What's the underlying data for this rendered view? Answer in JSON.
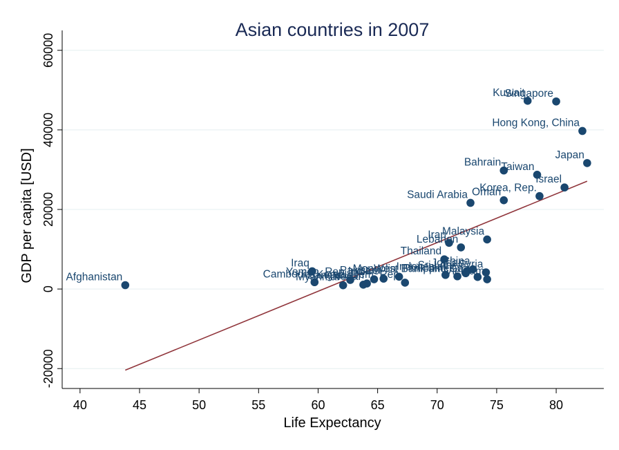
{
  "chart_data": {
    "type": "scatter",
    "title": "Asian countries in 2007",
    "xlabel": "Life Expectancy",
    "ylabel": "GDP per capita [USD]",
    "xlim": [
      38.5,
      84
    ],
    "ylim": [
      -25000,
      65000
    ],
    "xticks": [
      40,
      45,
      50,
      55,
      60,
      65,
      70,
      75,
      80
    ],
    "yticks": [
      -20000,
      0,
      20000,
      40000,
      60000
    ],
    "grid": "horizontal",
    "colors": {
      "marker": "#1a476f",
      "fit_line": "#90353b",
      "label": "#1a476f",
      "title": "#1a2a55"
    },
    "series": [
      {
        "points": [
          {
            "label": "Afghanistan",
            "x": 43.8,
            "y": 974
          },
          {
            "label": "Bahrain",
            "x": 75.6,
            "y": 29796
          },
          {
            "label": "Bangladesh",
            "x": 64.1,
            "y": 1391
          },
          {
            "label": "Cambodia",
            "x": 59.7,
            "y": 1713
          },
          {
            "label": "China",
            "x": 73.0,
            "y": 4959
          },
          {
            "label": "Hong Kong, China",
            "x": 82.2,
            "y": 39725
          },
          {
            "label": "India",
            "x": 64.7,
            "y": 2452
          },
          {
            "label": "Indonesia",
            "x": 70.7,
            "y": 3541
          },
          {
            "label": "Iran",
            "x": 71.0,
            "y": 11606
          },
          {
            "label": "Iraq",
            "x": 59.5,
            "y": 4471
          },
          {
            "label": "Israel",
            "x": 80.7,
            "y": 25523
          },
          {
            "label": "Japan",
            "x": 82.6,
            "y": 31656
          },
          {
            "label": "Jordan",
            "x": 72.5,
            "y": 4519
          },
          {
            "label": "Korea, Dem. Rep.",
            "x": 67.3,
            "y": 1593
          },
          {
            "label": "Korea, Rep.",
            "x": 78.6,
            "y": 23348
          },
          {
            "label": "Kuwait",
            "x": 77.6,
            "y": 47307
          },
          {
            "label": "Lebanon",
            "x": 72.0,
            "y": 10461
          },
          {
            "label": "Malaysia",
            "x": 74.2,
            "y": 12452
          },
          {
            "label": "Mongolia",
            "x": 66.8,
            "y": 3096
          },
          {
            "label": "Myanmar",
            "x": 62.1,
            "y": 944
          },
          {
            "label": "Nepal",
            "x": 63.8,
            "y": 1091
          },
          {
            "label": "Oman",
            "x": 75.6,
            "y": 22316
          },
          {
            "label": "Pakistan",
            "x": 65.5,
            "y": 2606
          },
          {
            "label": "Philippines",
            "x": 71.7,
            "y": 3190
          },
          {
            "label": "Saudi Arabia",
            "x": 72.8,
            "y": 21655
          },
          {
            "label": "Singapore",
            "x": 80.0,
            "y": 47143
          },
          {
            "label": "Sri Lanka",
            "x": 72.4,
            "y": 3970
          },
          {
            "label": "Syria",
            "x": 74.1,
            "y": 4185
          },
          {
            "label": "Taiwan",
            "x": 78.4,
            "y": 28718
          },
          {
            "label": "Thailand",
            "x": 70.6,
            "y": 7458
          },
          {
            "label": "Vietnam",
            "x": 74.2,
            "y": 2442
          },
          {
            "label": "West Bank and Gaza",
            "x": 73.4,
            "y": 3026
          },
          {
            "label": "Yemen, Rep.",
            "x": 62.7,
            "y": 2281
          }
        ]
      }
    ],
    "fit_line": {
      "x": [
        43.8,
        82.6
      ],
      "y": [
        -20400,
        27100
      ]
    }
  }
}
